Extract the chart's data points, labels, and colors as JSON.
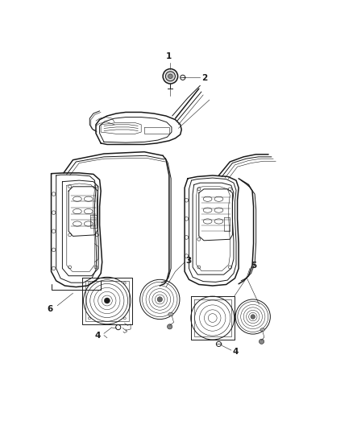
{
  "background_color": "#ffffff",
  "line_color": "#1a1a1a",
  "gray_color": "#888888",
  "fig_width": 4.38,
  "fig_height": 5.33,
  "dpi": 100
}
